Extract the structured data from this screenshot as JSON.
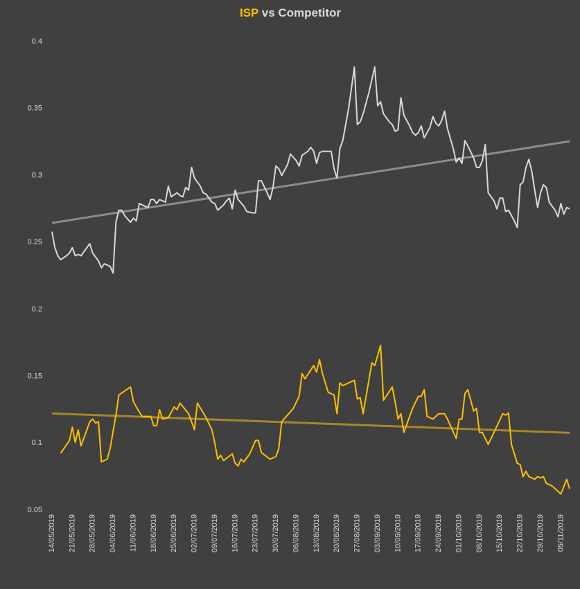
{
  "chart_data": {
    "type": "line",
    "title": "ISP vs Competitor",
    "background": "#404040",
    "text_color": "#d9d9d9",
    "xlim": [
      "14/05/2019",
      "08/11/2019"
    ],
    "xticks": [
      "14/05/2019",
      "21/05/2019",
      "28/05/2019",
      "04/06/2019",
      "11/06/2019",
      "18/06/2019",
      "25/06/2019",
      "02/07/2019",
      "09/07/2019",
      "16/07/2019",
      "23/07/2019",
      "30/07/2019",
      "06/08/2019",
      "13/08/2019",
      "20/08/2019",
      "27/08/2019",
      "03/09/2019",
      "10/09/2019",
      "17/09/2019",
      "24/09/2019",
      "01/10/2019",
      "08/10/2019",
      "15/10/2019",
      "22/10/2019",
      "29/10/2019",
      "05/11/2019"
    ],
    "ylim": [
      0.05,
      0.4
    ],
    "yticks": [
      0.05,
      0.1,
      0.15,
      0.2,
      0.25,
      0.3,
      0.35,
      0.4
    ],
    "grid": false,
    "series": [
      {
        "color": "#ffc000",
        "x": [
          "17/05/2019",
          "20/05/2019",
          "21/05/2019",
          "22/05/2019",
          "23/05/2019",
          "24/05/2019",
          "27/05/2019",
          "28/05/2019",
          "29/05/2019",
          "30/05/2019",
          "31/05/2019",
          "02/06/2019",
          "03/06/2019",
          "05/06/2019",
          "06/06/2019",
          "10/06/2019",
          "11/06/2019",
          "12/06/2019",
          "14/06/2019",
          "17/06/2019",
          "18/06/2019",
          "19/06/2019",
          "20/06/2019",
          "21/06/2019",
          "23/06/2019",
          "25/06/2019",
          "26/06/2019",
          "27/06/2019",
          "30/06/2019",
          "02/07/2019",
          "03/07/2019",
          "06/07/2019",
          "08/07/2019",
          "09/07/2019",
          "10/07/2019",
          "11/07/2019",
          "12/07/2019",
          "15/07/2019",
          "16/07/2019",
          "17/07/2019",
          "18/07/2019",
          "19/07/2019",
          "21/07/2019",
          "23/07/2019",
          "24/07/2019",
          "25/07/2019",
          "28/07/2019",
          "30/07/2019",
          "31/07/2019",
          "01/08/2019",
          "05/08/2019",
          "07/08/2019",
          "08/08/2019",
          "09/08/2019",
          "12/08/2019",
          "13/08/2019",
          "14/08/2019",
          "15/08/2019",
          "17/08/2019",
          "19/08/2019",
          "20/08/2019",
          "21/08/2019",
          "22/08/2019",
          "25/08/2019",
          "26/08/2019",
          "27/08/2019",
          "28/08/2019",
          "29/08/2019",
          "01/09/2019",
          "02/09/2019",
          "04/09/2019",
          "05/09/2019",
          "08/09/2019",
          "09/09/2019",
          "10/09/2019",
          "11/09/2019",
          "12/09/2019",
          "15/09/2019",
          "17/09/2019",
          "18/09/2019",
          "19/09/2019",
          "20/09/2019",
          "22/09/2019",
          "24/09/2019",
          "26/09/2019",
          "27/09/2019",
          "30/09/2019",
          "01/10/2019",
          "02/10/2019",
          "03/10/2019",
          "04/10/2019",
          "06/10/2019",
          "07/10/2019",
          "08/10/2019",
          "09/10/2019",
          "11/10/2019",
          "13/10/2019",
          "16/10/2019",
          "17/10/2019",
          "18/10/2019",
          "19/10/2019",
          "21/10/2019",
          "22/10/2019",
          "23/10/2019",
          "24/10/2019",
          "25/10/2019",
          "27/10/2019",
          "28/10/2019",
          "29/10/2019",
          "30/10/2019",
          "31/10/2019",
          "02/11/2019",
          "05/11/2019",
          "07/11/2019",
          "08/11/2019"
        ],
        "values": [
          0.0925,
          0.102,
          0.112,
          0.1005,
          0.11,
          0.098,
          0.116,
          0.118,
          0.115,
          0.116,
          0.086,
          0.088,
          0.096,
          0.121,
          0.136,
          0.142,
          0.131,
          0.127,
          0.12,
          0.12,
          0.113,
          0.113,
          0.125,
          0.118,
          0.119,
          0.127,
          0.125,
          0.13,
          0.122,
          0.11,
          0.13,
          0.119,
          0.11,
          0.1,
          0.088,
          0.091,
          0.087,
          0.092,
          0.085,
          0.083,
          0.088,
          0.086,
          0.092,
          0.102,
          0.102,
          0.093,
          0.088,
          0.09,
          0.096,
          0.116,
          0.126,
          0.135,
          0.152,
          0.148,
          0.158,
          0.153,
          0.1625,
          0.152,
          0.138,
          0.136,
          0.122,
          0.145,
          0.143,
          0.146,
          0.147,
          0.133,
          0.134,
          0.122,
          0.16,
          0.158,
          0.173,
          0.132,
          0.142,
          0.131,
          0.118,
          0.122,
          0.108,
          0.126,
          0.135,
          0.135,
          0.14,
          0.12,
          0.118,
          0.122,
          0.122,
          0.118,
          0.1035,
          0.118,
          0.118,
          0.137,
          0.14,
          0.124,
          0.126,
          0.108,
          0.108,
          0.099,
          0.108,
          0.122,
          0.121,
          0.1225,
          0.099,
          0.085,
          0.084,
          0.075,
          0.079,
          0.075,
          0.073,
          0.075,
          0.074,
          0.075,
          0.07,
          0.068,
          0.062,
          0.073,
          0.066
        ]
      },
      {
        "color": "#d9d9d9",
        "x": [
          "14/05/2019",
          "15/05/2019",
          "16/05/2019",
          "17/05/2019",
          "19/05/2019",
          "20/05/2019",
          "21/05/2019",
          "22/05/2019",
          "23/05/2019",
          "24/05/2019",
          "26/05/2019",
          "27/05/2019",
          "28/05/2019",
          "30/05/2019",
          "31/05/2019",
          "01/06/2019",
          "03/06/2019",
          "04/06/2019",
          "05/06/2019",
          "06/06/2019",
          "07/06/2019",
          "08/06/2019",
          "10/06/2019",
          "11/06/2019",
          "12/06/2019",
          "13/06/2019",
          "15/06/2019",
          "16/06/2019",
          "17/06/2019",
          "18/06/2019",
          "19/06/2019",
          "20/06/2019",
          "21/06/2019",
          "22/06/2019",
          "23/06/2019",
          "24/06/2019",
          "26/06/2019",
          "27/06/2019",
          "28/06/2019",
          "29/06/2019",
          "30/06/2019",
          "01/07/2019",
          "02/07/2019",
          "04/07/2019",
          "05/07/2019",
          "06/07/2019",
          "08/07/2019",
          "09/07/2019",
          "10/07/2019",
          "12/07/2019",
          "13/07/2019",
          "14/07/2019",
          "15/07/2019",
          "16/07/2019",
          "17/07/2019",
          "19/07/2019",
          "20/07/2019",
          "22/07/2019",
          "23/07/2019",
          "24/07/2019",
          "25/07/2019",
          "27/07/2019",
          "28/07/2019",
          "29/07/2019",
          "30/07/2019",
          "31/07/2019",
          "01/08/2019",
          "03/08/2019",
          "04/08/2019",
          "06/08/2019",
          "07/08/2019",
          "08/08/2019",
          "10/08/2019",
          "11/08/2019",
          "12/08/2019",
          "13/08/2019",
          "14/08/2019",
          "15/08/2019",
          "16/08/2019",
          "18/08/2019",
          "19/08/2019",
          "20/08/2019",
          "21/08/2019",
          "22/08/2019",
          "24/08/2019",
          "26/08/2019",
          "27/08/2019",
          "28/08/2019",
          "29/08/2019",
          "31/08/2019",
          "02/09/2019",
          "03/09/2019",
          "04/09/2019",
          "05/09/2019",
          "06/09/2019",
          "07/09/2019",
          "08/09/2019",
          "09/09/2019",
          "10/09/2019",
          "11/09/2019",
          "12/09/2019",
          "14/09/2019",
          "15/09/2019",
          "16/09/2019",
          "17/09/2019",
          "18/09/2019",
          "19/09/2019",
          "21/09/2019",
          "22/09/2019",
          "23/09/2019",
          "24/09/2019",
          "25/09/2019",
          "26/09/2019",
          "27/09/2019",
          "29/09/2019",
          "30/09/2019",
          "01/10/2019",
          "02/10/2019",
          "03/10/2019",
          "04/10/2019",
          "06/10/2019",
          "07/10/2019",
          "08/10/2019",
          "09/10/2019",
          "10/10/2019",
          "11/10/2019",
          "13/10/2019",
          "14/10/2019",
          "15/10/2019",
          "16/10/2019",
          "17/10/2019",
          "18/10/2019",
          "20/10/2019",
          "21/10/2019",
          "22/10/2019",
          "23/10/2019",
          "24/10/2019",
          "25/10/2019",
          "26/10/2019",
          "27/10/2019",
          "28/10/2019",
          "29/10/2019",
          "30/10/2019",
          "31/10/2019",
          "01/11/2019",
          "03/11/2019",
          "04/11/2019",
          "05/11/2019",
          "06/11/2019",
          "07/11/2019",
          "08/11/2019"
        ],
        "values": [
          0.258,
          0.246,
          0.24,
          0.237,
          0.24,
          0.242,
          0.246,
          0.24,
          0.241,
          0.24,
          0.246,
          0.249,
          0.242,
          0.236,
          0.231,
          0.234,
          0.232,
          0.227,
          0.265,
          0.274,
          0.274,
          0.27,
          0.265,
          0.268,
          0.266,
          0.279,
          0.277,
          0.276,
          0.282,
          0.282,
          0.279,
          0.282,
          0.281,
          0.28,
          0.292,
          0.284,
          0.287,
          0.285,
          0.284,
          0.291,
          0.289,
          0.306,
          0.298,
          0.292,
          0.287,
          0.286,
          0.28,
          0.279,
          0.274,
          0.278,
          0.281,
          0.283,
          0.275,
          0.289,
          0.282,
          0.277,
          0.273,
          0.272,
          0.272,
          0.296,
          0.296,
          0.287,
          0.282,
          0.291,
          0.307,
          0.305,
          0.3,
          0.308,
          0.316,
          0.311,
          0.307,
          0.315,
          0.318,
          0.321,
          0.318,
          0.309,
          0.317,
          0.318,
          0.318,
          0.318,
          0.305,
          0.298,
          0.32,
          0.326,
          0.35,
          0.381,
          0.338,
          0.34,
          0.346,
          0.362,
          0.381,
          0.352,
          0.355,
          0.346,
          0.343,
          0.34,
          0.338,
          0.333,
          0.334,
          0.358,
          0.345,
          0.337,
          0.332,
          0.33,
          0.332,
          0.337,
          0.328,
          0.336,
          0.344,
          0.339,
          0.337,
          0.341,
          0.348,
          0.335,
          0.32,
          0.31,
          0.313,
          0.309,
          0.326,
          0.322,
          0.313,
          0.306,
          0.306,
          0.311,
          0.323,
          0.287,
          0.281,
          0.275,
          0.283,
          0.283,
          0.273,
          0.274,
          0.266,
          0.261,
          0.293,
          0.295,
          0.306,
          0.312,
          0.303,
          0.289,
          0.276,
          0.287,
          0.293,
          0.291,
          0.28,
          0.274,
          0.269,
          0.279,
          0.271,
          0.276,
          0.275
        ]
      }
    ],
    "trendlines": [
      {
        "color": "#a8862a",
        "x": [
          "14/05/2019",
          "08/11/2019"
        ],
        "values": [
          0.1222,
          0.1077
        ]
      },
      {
        "color": "#8c8c8c",
        "x": [
          "14/05/2019",
          "08/11/2019"
        ],
        "values": [
          0.2645,
          0.3255
        ]
      }
    ]
  }
}
